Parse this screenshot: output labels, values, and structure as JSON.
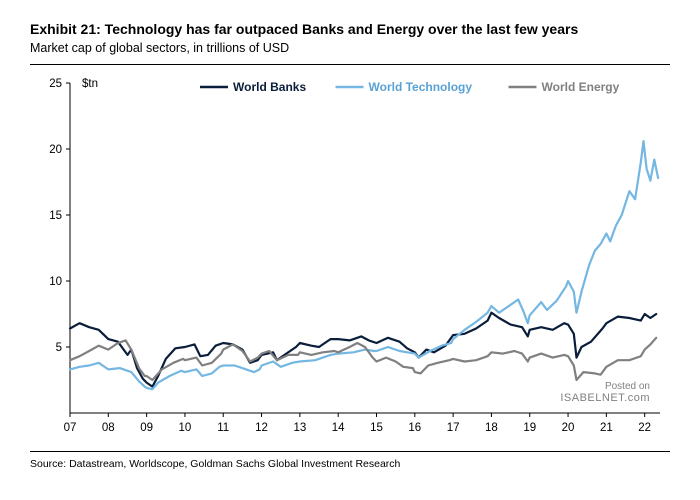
{
  "title": "Exhibit 21: Technology has far outpaced Banks and Energy over the last few years",
  "subtitle": "Market cap of global sectors, in trillions of USD",
  "source": "Source: Datastream, Worldscope, Goldman Sachs Global Investment Research",
  "posted_on": "Posted on",
  "posted_site": "ISABELNET.com",
  "chart": {
    "type": "line",
    "unit_label": "$tn",
    "background_color": "#ffffff",
    "axis_color": "#000000",
    "tick_color": "#000000",
    "label_fontsize": 11.5,
    "x": {
      "min": 2007,
      "max": 2022.4,
      "ticks": [
        2007,
        2008,
        2009,
        2010,
        2011,
        2012,
        2013,
        2014,
        2015,
        2016,
        2017,
        2018,
        2019,
        2020,
        2021,
        2022
      ],
      "tick_labels": [
        "07",
        "08",
        "09",
        "10",
        "11",
        "12",
        "13",
        "14",
        "15",
        "16",
        "17",
        "18",
        "19",
        "20",
        "21",
        "22"
      ]
    },
    "y": {
      "min": 0,
      "max": 25,
      "ticks": [
        5,
        10,
        15,
        20,
        25
      ]
    },
    "series": [
      {
        "name": "World Banks",
        "color": "#0a1e3c",
        "width": 2.2,
        "data": [
          [
            2007.0,
            6.4
          ],
          [
            2007.25,
            6.8
          ],
          [
            2007.5,
            6.5
          ],
          [
            2007.75,
            6.3
          ],
          [
            2008.0,
            5.6
          ],
          [
            2008.25,
            5.4
          ],
          [
            2008.5,
            4.4
          ],
          [
            2008.6,
            4.8
          ],
          [
            2008.75,
            3.4
          ],
          [
            2008.9,
            2.6
          ],
          [
            2009.0,
            2.3
          ],
          [
            2009.15,
            2.0
          ],
          [
            2009.3,
            2.8
          ],
          [
            2009.5,
            4.1
          ],
          [
            2009.75,
            4.9
          ],
          [
            2010.0,
            5.0
          ],
          [
            2010.25,
            5.2
          ],
          [
            2010.4,
            4.3
          ],
          [
            2010.6,
            4.4
          ],
          [
            2010.8,
            5.1
          ],
          [
            2011.0,
            5.3
          ],
          [
            2011.25,
            5.2
          ],
          [
            2011.5,
            4.8
          ],
          [
            2011.7,
            3.8
          ],
          [
            2011.9,
            4.0
          ],
          [
            2012.0,
            4.4
          ],
          [
            2012.3,
            4.6
          ],
          [
            2012.4,
            4.0
          ],
          [
            2012.6,
            4.4
          ],
          [
            2012.9,
            5.0
          ],
          [
            2013.0,
            5.3
          ],
          [
            2013.3,
            5.1
          ],
          [
            2013.5,
            5.0
          ],
          [
            2013.8,
            5.6
          ],
          [
            2014.0,
            5.6
          ],
          [
            2014.3,
            5.5
          ],
          [
            2014.6,
            5.8
          ],
          [
            2014.8,
            5.5
          ],
          [
            2015.0,
            5.3
          ],
          [
            2015.3,
            5.7
          ],
          [
            2015.6,
            5.4
          ],
          [
            2015.8,
            4.9
          ],
          [
            2016.0,
            4.6
          ],
          [
            2016.1,
            4.2
          ],
          [
            2016.3,
            4.8
          ],
          [
            2016.5,
            4.6
          ],
          [
            2016.8,
            5.1
          ],
          [
            2017.0,
            5.9
          ],
          [
            2017.3,
            6.0
          ],
          [
            2017.6,
            6.4
          ],
          [
            2017.9,
            7.0
          ],
          [
            2018.0,
            7.6
          ],
          [
            2018.2,
            7.2
          ],
          [
            2018.5,
            6.7
          ],
          [
            2018.8,
            6.5
          ],
          [
            2018.95,
            5.8
          ],
          [
            2019.0,
            6.3
          ],
          [
            2019.3,
            6.5
          ],
          [
            2019.6,
            6.3
          ],
          [
            2019.9,
            6.8
          ],
          [
            2020.0,
            6.7
          ],
          [
            2020.15,
            6.0
          ],
          [
            2020.22,
            4.2
          ],
          [
            2020.35,
            5.0
          ],
          [
            2020.6,
            5.4
          ],
          [
            2020.9,
            6.4
          ],
          [
            2021.0,
            6.8
          ],
          [
            2021.3,
            7.3
          ],
          [
            2021.6,
            7.2
          ],
          [
            2021.9,
            7.0
          ],
          [
            2022.0,
            7.5
          ],
          [
            2022.15,
            7.2
          ],
          [
            2022.3,
            7.5
          ]
        ]
      },
      {
        "name": "World Technology",
        "color": "#74b7e2",
        "width": 2.2,
        "data": [
          [
            2007.0,
            3.3
          ],
          [
            2007.25,
            3.5
          ],
          [
            2007.5,
            3.6
          ],
          [
            2007.75,
            3.8
          ],
          [
            2008.0,
            3.3
          ],
          [
            2008.3,
            3.4
          ],
          [
            2008.6,
            3.1
          ],
          [
            2008.8,
            2.4
          ],
          [
            2008.95,
            2.0
          ],
          [
            2009.0,
            1.9
          ],
          [
            2009.15,
            1.8
          ],
          [
            2009.3,
            2.3
          ],
          [
            2009.6,
            2.8
          ],
          [
            2009.9,
            3.2
          ],
          [
            2010.0,
            3.1
          ],
          [
            2010.3,
            3.3
          ],
          [
            2010.45,
            2.8
          ],
          [
            2010.7,
            3.0
          ],
          [
            2010.9,
            3.5
          ],
          [
            2011.0,
            3.6
          ],
          [
            2011.3,
            3.6
          ],
          [
            2011.6,
            3.3
          ],
          [
            2011.8,
            3.1
          ],
          [
            2011.95,
            3.3
          ],
          [
            2012.0,
            3.6
          ],
          [
            2012.3,
            3.9
          ],
          [
            2012.5,
            3.5
          ],
          [
            2012.8,
            3.8
          ],
          [
            2013.0,
            3.9
          ],
          [
            2013.4,
            4.0
          ],
          [
            2013.8,
            4.4
          ],
          [
            2014.0,
            4.5
          ],
          [
            2014.4,
            4.6
          ],
          [
            2014.7,
            4.8
          ],
          [
            2014.95,
            4.7
          ],
          [
            2015.0,
            4.7
          ],
          [
            2015.3,
            5.0
          ],
          [
            2015.6,
            4.7
          ],
          [
            2015.8,
            4.6
          ],
          [
            2016.0,
            4.5
          ],
          [
            2016.1,
            4.2
          ],
          [
            2016.4,
            4.7
          ],
          [
            2016.7,
            5.1
          ],
          [
            2016.95,
            5.3
          ],
          [
            2017.0,
            5.6
          ],
          [
            2017.3,
            6.3
          ],
          [
            2017.6,
            6.9
          ],
          [
            2017.9,
            7.6
          ],
          [
            2018.0,
            8.1
          ],
          [
            2018.2,
            7.6
          ],
          [
            2018.5,
            8.2
          ],
          [
            2018.7,
            8.6
          ],
          [
            2018.85,
            7.6
          ],
          [
            2018.95,
            6.8
          ],
          [
            2019.0,
            7.4
          ],
          [
            2019.3,
            8.4
          ],
          [
            2019.45,
            7.8
          ],
          [
            2019.7,
            8.5
          ],
          [
            2019.95,
            9.6
          ],
          [
            2020.0,
            10.0
          ],
          [
            2020.15,
            9.2
          ],
          [
            2020.22,
            7.6
          ],
          [
            2020.35,
            9.2
          ],
          [
            2020.55,
            11.2
          ],
          [
            2020.7,
            12.3
          ],
          [
            2020.85,
            12.8
          ],
          [
            2021.0,
            13.6
          ],
          [
            2021.1,
            13.0
          ],
          [
            2021.25,
            14.2
          ],
          [
            2021.4,
            15.0
          ],
          [
            2021.6,
            16.8
          ],
          [
            2021.75,
            16.2
          ],
          [
            2021.9,
            19.0
          ],
          [
            2021.97,
            20.6
          ],
          [
            2022.05,
            18.5
          ],
          [
            2022.15,
            17.6
          ],
          [
            2022.25,
            19.2
          ],
          [
            2022.35,
            17.8
          ]
        ]
      },
      {
        "name": "World Energy",
        "color": "#808080",
        "width": 2.2,
        "data": [
          [
            2007.0,
            4.0
          ],
          [
            2007.25,
            4.3
          ],
          [
            2007.5,
            4.7
          ],
          [
            2007.75,
            5.1
          ],
          [
            2008.0,
            4.8
          ],
          [
            2008.25,
            5.3
          ],
          [
            2008.45,
            5.5
          ],
          [
            2008.6,
            4.8
          ],
          [
            2008.8,
            3.4
          ],
          [
            2008.95,
            2.8
          ],
          [
            2009.0,
            2.8
          ],
          [
            2009.15,
            2.5
          ],
          [
            2009.4,
            3.3
          ],
          [
            2009.7,
            3.8
          ],
          [
            2009.95,
            4.1
          ],
          [
            2010.0,
            4.0
          ],
          [
            2010.3,
            4.2
          ],
          [
            2010.45,
            3.6
          ],
          [
            2010.7,
            3.8
          ],
          [
            2010.95,
            4.5
          ],
          [
            2011.0,
            4.8
          ],
          [
            2011.25,
            5.2
          ],
          [
            2011.5,
            4.7
          ],
          [
            2011.7,
            3.9
          ],
          [
            2011.9,
            4.2
          ],
          [
            2012.0,
            4.5
          ],
          [
            2012.2,
            4.7
          ],
          [
            2012.4,
            4.0
          ],
          [
            2012.7,
            4.4
          ],
          [
            2012.95,
            4.4
          ],
          [
            2013.0,
            4.6
          ],
          [
            2013.3,
            4.4
          ],
          [
            2013.6,
            4.6
          ],
          [
            2013.9,
            4.7
          ],
          [
            2014.0,
            4.6
          ],
          [
            2014.3,
            5.0
          ],
          [
            2014.5,
            5.3
          ],
          [
            2014.7,
            5.0
          ],
          [
            2014.9,
            4.2
          ],
          [
            2015.0,
            3.9
          ],
          [
            2015.25,
            4.2
          ],
          [
            2015.5,
            3.9
          ],
          [
            2015.7,
            3.5
          ],
          [
            2015.95,
            3.4
          ],
          [
            2016.0,
            3.1
          ],
          [
            2016.15,
            3.0
          ],
          [
            2016.35,
            3.6
          ],
          [
            2016.6,
            3.8
          ],
          [
            2016.9,
            4.0
          ],
          [
            2017.0,
            4.1
          ],
          [
            2017.3,
            3.9
          ],
          [
            2017.6,
            4.0
          ],
          [
            2017.9,
            4.3
          ],
          [
            2018.0,
            4.6
          ],
          [
            2018.3,
            4.5
          ],
          [
            2018.6,
            4.7
          ],
          [
            2018.8,
            4.5
          ],
          [
            2018.95,
            3.9
          ],
          [
            2019.0,
            4.2
          ],
          [
            2019.3,
            4.5
          ],
          [
            2019.6,
            4.2
          ],
          [
            2019.9,
            4.4
          ],
          [
            2020.0,
            4.3
          ],
          [
            2020.15,
            3.6
          ],
          [
            2020.22,
            2.5
          ],
          [
            2020.4,
            3.1
          ],
          [
            2020.7,
            3.0
          ],
          [
            2020.85,
            2.9
          ],
          [
            2021.0,
            3.5
          ],
          [
            2021.3,
            4.0
          ],
          [
            2021.6,
            4.0
          ],
          [
            2021.9,
            4.3
          ],
          [
            2022.0,
            4.8
          ],
          [
            2022.15,
            5.2
          ],
          [
            2022.3,
            5.7
          ]
        ]
      }
    ],
    "legend": {
      "items": [
        "World Banks",
        "World Technology",
        "World Energy"
      ],
      "colors": [
        "#0a1e3c",
        "#74b7e2",
        "#808080"
      ]
    }
  }
}
